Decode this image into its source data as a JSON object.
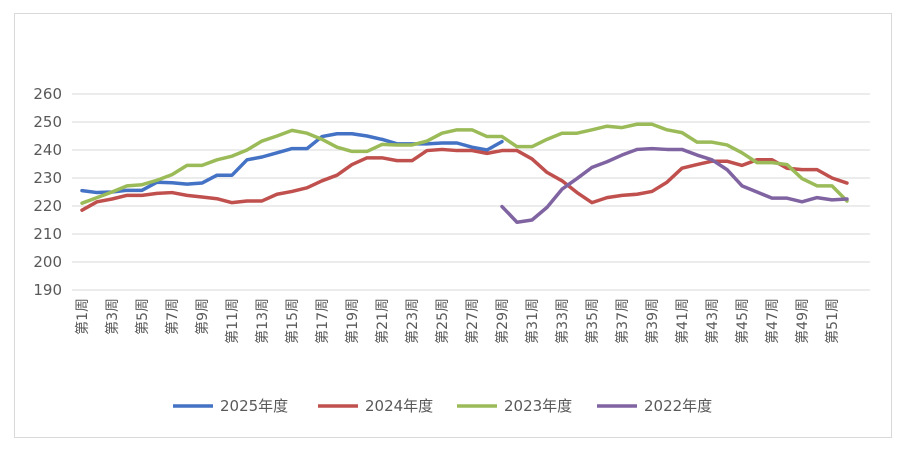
{
  "chart_data": {
    "type": "line",
    "title": "",
    "xlabel": "",
    "ylabel": "",
    "ylim": [
      190,
      260
    ],
    "y_ticks": [
      190,
      200,
      210,
      220,
      230,
      240,
      250,
      260
    ],
    "grid": true,
    "legend_position": "bottom",
    "categories": [
      "第1周",
      "第2周",
      "第3周",
      "第4周",
      "第5周",
      "第6周",
      "第7周",
      "第8周",
      "第9周",
      "第10周",
      "第11周",
      "第12周",
      "第13周",
      "第14周",
      "第15周",
      "第16周",
      "第17周",
      "第18周",
      "第19周",
      "第20周",
      "第21周",
      "第22周",
      "第23周",
      "第24周",
      "第25周",
      "第26周",
      "第27周",
      "第28周",
      "第29周",
      "第30周",
      "第31周",
      "第32周",
      "第33周",
      "第34周",
      "第35周",
      "第36周",
      "第37周",
      "第38周",
      "第39周",
      "第40周",
      "第41周",
      "第42周",
      "第43周",
      "第44周",
      "第45周",
      "第46周",
      "第47周",
      "第48周",
      "第49周",
      "第50周",
      "第51周",
      "第52周"
    ],
    "x_tick_labels": [
      "第1周",
      "第3周",
      "第5周",
      "第7周",
      "第9周",
      "第11周",
      "第13周",
      "第15周",
      "第17周",
      "第19周",
      "第21周",
      "第23周",
      "第25周",
      "第27周",
      "第29周",
      "第31周",
      "第33周",
      "第35周",
      "第37周",
      "第39周",
      "第41周",
      "第43周",
      "第45周",
      "第47周",
      "第49周",
      "第51周"
    ],
    "series": [
      {
        "name": "2025年度",
        "color": "#4472c4",
        "values": [
          225.5,
          224.8,
          225,
          225.6,
          225.6,
          228.5,
          228.3,
          227.8,
          228.2,
          231,
          231,
          236.5,
          237.5,
          239,
          240.5,
          240.5,
          244.8,
          245.8,
          245.8,
          245,
          243.8,
          242.2,
          242.2,
          242.2,
          242.5,
          242.5,
          241,
          240,
          243,
          null,
          null,
          null,
          null,
          null,
          null,
          null,
          null,
          null,
          null,
          null,
          null,
          null,
          null,
          null,
          null,
          null,
          null,
          null,
          null,
          null,
          null,
          null
        ]
      },
      {
        "name": "2024年度",
        "color": "#c0504d",
        "values": [
          218.5,
          221.5,
          222.5,
          223.8,
          223.8,
          224.5,
          224.8,
          223.8,
          223.2,
          222.6,
          221.2,
          221.8,
          221.8,
          224.2,
          225.2,
          226.5,
          229,
          231,
          234.8,
          237.2,
          237.2,
          236.2,
          236.2,
          239.8,
          240.2,
          239.8,
          239.8,
          238.8,
          239.8,
          239.8,
          236.8,
          232,
          229,
          224.8,
          221.2,
          223,
          223.8,
          224.2,
          225.2,
          228.5,
          233.5,
          234.8,
          236,
          236,
          234.5,
          236.5,
          236.5,
          233.5,
          233,
          233,
          230,
          228.2
        ]
      },
      {
        "name": "2023年度",
        "color": "#9bbb59",
        "values": [
          221,
          223,
          225,
          227.2,
          227.6,
          229.2,
          231.2,
          234.5,
          234.5,
          236.5,
          237.8,
          240,
          243.2,
          245,
          247,
          246,
          243.8,
          241,
          239.5,
          239.5,
          242,
          241.8,
          241.8,
          243.2,
          246,
          247.2,
          247.2,
          244.8,
          244.8,
          241.2,
          241.2,
          243.8,
          246,
          246,
          247.2,
          248.5,
          248,
          249.2,
          249.2,
          247.2,
          246.2,
          242.8,
          242.8,
          241.8,
          239,
          235.5,
          235.5,
          234.8,
          229.8,
          227.2,
          227.2,
          221.8
        ]
      },
      {
        "name": "2022年度",
        "color": "#8064a2",
        "values": [
          null,
          null,
          null,
          null,
          null,
          null,
          null,
          null,
          null,
          null,
          null,
          null,
          null,
          null,
          null,
          null,
          null,
          null,
          null,
          null,
          null,
          null,
          null,
          null,
          null,
          null,
          null,
          null,
          219.8,
          214.2,
          215,
          219.5,
          226,
          229.8,
          233.8,
          235.8,
          238.2,
          240.2,
          240.5,
          240.2,
          240.2,
          238.2,
          236.5,
          233,
          227.2,
          225,
          222.8,
          222.8,
          221.5,
          223,
          222.2,
          222.5
        ]
      }
    ]
  }
}
